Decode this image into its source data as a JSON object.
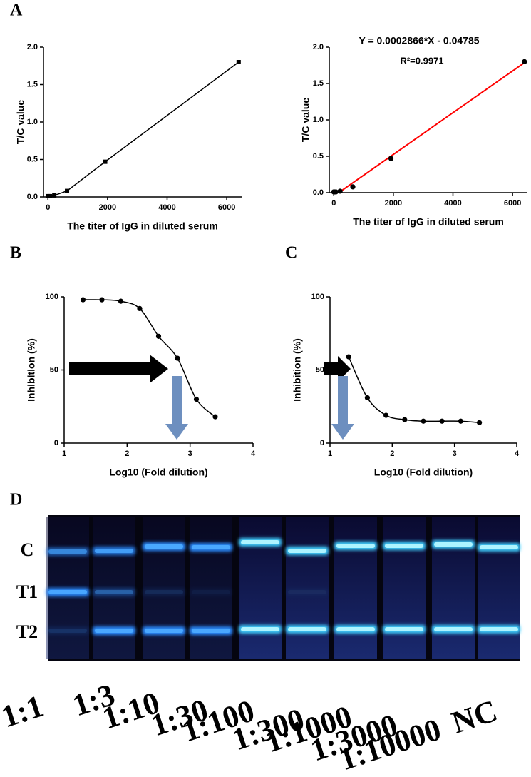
{
  "chart_data": [
    {
      "type": "line",
      "xlabel": "The titer of IgG in diluted serum",
      "ylabel": "T/C value",
      "x": [
        0,
        21,
        71,
        213,
        640,
        1920,
        6400
      ],
      "values": [
        0.01,
        0.01,
        0.01,
        0.02,
        0.08,
        0.47,
        1.8
      ],
      "color": "#000000",
      "marker": "square",
      "xlim": [
        -150,
        6500
      ],
      "xticks": [
        0,
        2000,
        4000,
        6000
      ],
      "ylim": [
        0,
        2
      ],
      "yticks": [
        {
          "value": 0,
          "label": "0.0"
        },
        0.5,
        {
          "value": 1,
          "label": "1.0"
        },
        1.5,
        {
          "value": 2,
          "label": "2.0"
        }
      ]
    },
    {
      "type": "scatter",
      "xlabel": "The titer of IgG in diluted serum",
      "ylabel": "T/C value",
      "x": [
        0,
        21,
        71,
        213,
        640,
        1920,
        6400
      ],
      "values": [
        0.01,
        0.01,
        0.01,
        0.02,
        0.08,
        0.47,
        1.8
      ],
      "color": "#000000",
      "marker": "circle",
      "fit": {
        "equation": "Y = 0.0002866*X - 0.04785",
        "r2": "R²=0.9971",
        "slope": 0.0002866,
        "intercept": -0.04785,
        "color": "#ff0000"
      },
      "xlim": [
        -150,
        6500
      ],
      "xticks": [
        0,
        2000,
        4000,
        6000
      ],
      "ylim": [
        0,
        2
      ],
      "yticks": [
        {
          "value": 0,
          "label": "0.0"
        },
        0.5,
        {
          "value": 1,
          "label": "1.0"
        },
        1.5,
        {
          "value": 2,
          "label": "2.0"
        }
      ]
    },
    {
      "type": "line",
      "smooth": true,
      "xlabel": "Log10 (Fold dilution)",
      "ylabel": "Inhibition (%)",
      "x": [
        1.3,
        1.6,
        1.9,
        2.2,
        2.5,
        2.8,
        3.1,
        3.4
      ],
      "values": [
        98,
        98,
        97,
        92,
        73,
        58,
        30,
        18
      ],
      "color": "#000000",
      "marker": "circle",
      "xlim": [
        1,
        4
      ],
      "xticks": [
        1,
        2,
        3,
        4
      ],
      "ylim": [
        0,
        100
      ],
      "yticks": [
        0,
        50,
        100
      ]
    },
    {
      "type": "line",
      "smooth": true,
      "xlabel": "Log10 (Fold dilution)",
      "ylabel": "Inhibition (%)",
      "x": [
        1.3,
        1.6,
        1.9,
        2.2,
        2.5,
        2.8,
        3.1,
        3.4
      ],
      "values": [
        59,
        31,
        19,
        16,
        15,
        15,
        15,
        14
      ],
      "color": "#000000",
      "marker": "circle",
      "xlim": [
        1,
        4
      ],
      "xticks": [
        1,
        2,
        3,
        4
      ],
      "ylim": [
        0,
        100
      ],
      "yticks": [
        0,
        50,
        100
      ]
    }
  ],
  "panel_labels": [
    "A",
    "B",
    "C",
    "D"
  ],
  "gel": {
    "band_labels": [
      "C",
      "T1",
      "T2"
    ],
    "lanes": [
      "1:1",
      "1:3",
      "1:10",
      "1:30",
      "1:100",
      "1:300",
      "1:1000",
      "1:3000",
      "1:10000",
      "NC"
    ]
  }
}
